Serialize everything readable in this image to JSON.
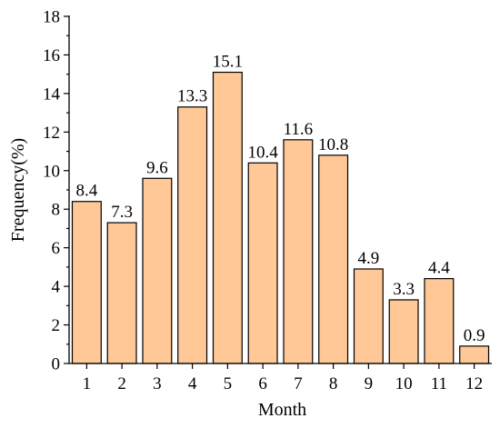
{
  "chart_data": {
    "type": "bar",
    "categories": [
      "1",
      "2",
      "3",
      "4",
      "5",
      "6",
      "7",
      "8",
      "9",
      "10",
      "11",
      "12"
    ],
    "values": [
      8.4,
      7.3,
      9.6,
      13.3,
      15.1,
      10.4,
      11.6,
      10.8,
      4.9,
      3.3,
      4.4,
      0.9
    ],
    "data_labels": [
      "8.4",
      "7.3",
      "9.6",
      "13.3",
      "15.1",
      "10.4",
      "11.6",
      "10.8",
      "4.9",
      "3.3",
      "4.4",
      "0.9"
    ],
    "xlabel": "Month",
    "ylabel": "Frequency(%)",
    "ylim": [
      0,
      18
    ],
    "yticks": [
      "0",
      "2",
      "4",
      "6",
      "8",
      "10",
      "12",
      "14",
      "16",
      "18"
    ],
    "grid": false,
    "bar_color": "#FFC896"
  }
}
